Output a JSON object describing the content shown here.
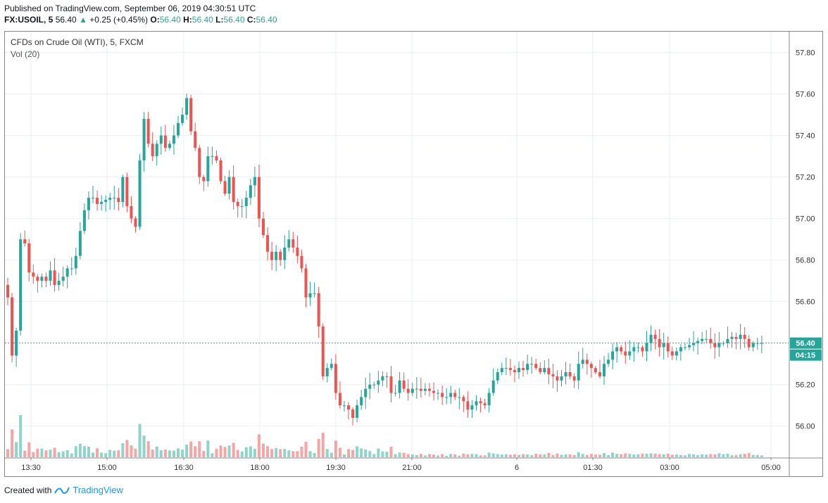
{
  "header": {
    "published": "Published on TradingView.com, September 06, 2019 04:30:51 UTC",
    "symbol": "FX:USOIL, 5",
    "last": "56.40",
    "arrow": "▲",
    "change": "+0.25 (+0.45%)",
    "o_label": "O:",
    "o_val": "56.40",
    "h_label": "H:",
    "h_val": "56.40",
    "l_label": "L:",
    "l_val": "56.40",
    "c_label": "C:",
    "c_val": "56.40"
  },
  "legend": {
    "title": "CFDs on Crude Oil (WTI), 5, FXCM",
    "volume": "Vol (20)"
  },
  "price_tag": {
    "price": "56.40",
    "countdown": "04:15",
    "color": "#26a69a"
  },
  "footer": {
    "created_with": "Created with",
    "brand": "TradingView"
  },
  "colors": {
    "up": "#26a69a",
    "down": "#ef5350",
    "up_vol": "#8fd4ca",
    "down_vol": "#f5a5a3",
    "grid": "#e9eff3"
  },
  "chart_data": {
    "type": "candlestick",
    "title": "CFDs on Crude Oil (WTI), 5, FXCM",
    "y_ticks": [
      "57.80",
      "57.60",
      "57.40",
      "57.20",
      "57.00",
      "56.80",
      "56.60",
      "56.20",
      "56.00"
    ],
    "x_ticks": [
      "13:30",
      "15:00",
      "16:30",
      "18:00",
      "19:30",
      "21:00",
      "6",
      "01:30",
      "03:00",
      "05:00"
    ],
    "ylim": [
      55.85,
      57.9
    ],
    "last_price": 56.4,
    "closes": [
      56.62,
      56.34,
      56.46,
      56.9,
      56.88,
      56.74,
      56.72,
      56.7,
      56.72,
      56.7,
      56.75,
      56.68,
      56.7,
      56.72,
      56.76,
      56.76,
      56.82,
      56.94,
      57.04,
      57.1,
      57.1,
      57.07,
      57.08,
      57.09,
      57.1,
      57.1,
      57.08,
      57.2,
      57.06,
      57.0,
      56.96,
      57.28,
      57.48,
      57.36,
      57.3,
      57.36,
      57.4,
      57.34,
      57.36,
      57.4,
      57.46,
      57.5,
      57.58,
      57.42,
      57.34,
      57.2,
      57.18,
      57.3,
      57.3,
      57.28,
      57.18,
      57.12,
      57.2,
      57.08,
      57.06,
      57.06,
      57.1,
      57.16,
      57.2,
      57.0,
      56.92,
      56.84,
      56.8,
      56.84,
      56.8,
      56.86,
      56.9,
      56.86,
      56.82,
      56.76,
      56.62,
      56.64,
      56.64,
      56.48,
      56.24,
      56.28,
      56.3,
      56.16,
      56.1,
      56.1,
      56.08,
      56.04,
      56.1,
      56.14,
      56.18,
      56.2,
      56.2,
      56.22,
      56.24,
      56.24,
      56.16,
      56.16,
      56.22,
      56.18,
      56.16,
      56.18,
      56.18,
      56.17,
      56.18,
      56.17,
      56.16,
      56.16,
      56.14,
      56.14,
      56.16,
      56.14,
      56.14,
      56.12,
      56.08,
      56.1,
      56.12,
      56.11,
      56.1,
      56.16,
      56.22,
      56.26,
      56.28,
      56.28,
      56.27,
      56.26,
      56.28,
      56.27,
      56.3,
      56.3,
      56.28,
      56.26,
      56.28,
      56.25,
      56.24,
      56.22,
      56.24,
      56.26,
      56.24,
      56.22,
      56.3,
      56.32,
      56.3,
      56.28,
      56.26,
      56.24,
      56.3,
      56.32,
      56.36,
      56.38,
      56.36,
      56.34,
      56.36,
      56.38,
      56.38,
      56.36,
      56.4,
      56.44,
      56.42,
      56.38,
      56.4,
      56.36,
      56.34,
      56.36,
      56.38,
      56.38,
      56.39,
      56.4,
      56.41,
      56.42,
      56.42,
      56.4,
      56.38,
      56.4,
      56.4,
      56.42,
      56.43,
      56.42,
      56.44,
      56.42,
      56.38,
      56.4,
      56.4,
      56.4
    ]
  }
}
